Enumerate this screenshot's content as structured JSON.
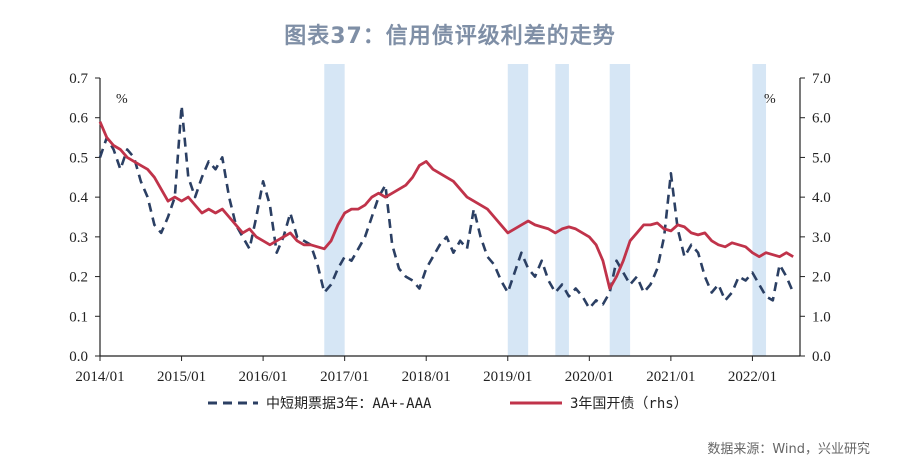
{
  "title": "图表37：信用债评级利差的走势",
  "source": "数据来源：Wind，兴业研究",
  "chart_data": {
    "type": "line",
    "x_range": [
      "2014-01",
      "2022-08"
    ],
    "x_ticks": [
      "2014/01",
      "2015/01",
      "2016/01",
      "2017/01",
      "2018/01",
      "2019/01",
      "2020/01",
      "2021/01",
      "2022/01"
    ],
    "left_axis": {
      "unit": "%",
      "range": [
        0,
        0.7
      ],
      "ticks": [
        "0.0",
        "0.1",
        "0.2",
        "0.3",
        "0.4",
        "0.5",
        "0.6",
        "0.7"
      ]
    },
    "right_axis": {
      "unit": "%",
      "range": [
        0,
        7
      ],
      "ticks": [
        "0.0",
        "1.0",
        "2.0",
        "3.0",
        "4.0",
        "5.0",
        "6.0",
        "7.0"
      ]
    },
    "shaded_periods": [
      {
        "start": "2016-10",
        "end": "2017-01"
      },
      {
        "start": "2019-01",
        "end": "2019-04"
      },
      {
        "start": "2019-08",
        "end": "2019-10"
      },
      {
        "start": "2020-04",
        "end": "2020-07"
      },
      {
        "start": "2022-01",
        "end": "2022-03"
      }
    ],
    "series": [
      {
        "name": "中短期票据3年：AA+-AAA",
        "axis": "left",
        "style": "dashed",
        "color": "#2b3f63",
        "points": [
          [
            "2014-01",
            0.5
          ],
          [
            "2014-02",
            0.55
          ],
          [
            "2014-03",
            0.52
          ],
          [
            "2014-04",
            0.47
          ],
          [
            "2014-05",
            0.52
          ],
          [
            "2014-06",
            0.5
          ],
          [
            "2014-07",
            0.44
          ],
          [
            "2014-08",
            0.4
          ],
          [
            "2014-09",
            0.33
          ],
          [
            "2014-10",
            0.31
          ],
          [
            "2014-11",
            0.35
          ],
          [
            "2014-12",
            0.4
          ],
          [
            "2015-01",
            0.63
          ],
          [
            "2015-02",
            0.45
          ],
          [
            "2015-03",
            0.4
          ],
          [
            "2015-04",
            0.45
          ],
          [
            "2015-05",
            0.49
          ],
          [
            "2015-06",
            0.47
          ],
          [
            "2015-07",
            0.5
          ],
          [
            "2015-08",
            0.4
          ],
          [
            "2015-09",
            0.33
          ],
          [
            "2015-10",
            0.3
          ],
          [
            "2015-11",
            0.27
          ],
          [
            "2015-12",
            0.35
          ],
          [
            "2016-01",
            0.44
          ],
          [
            "2016-02",
            0.38
          ],
          [
            "2016-03",
            0.26
          ],
          [
            "2016-04",
            0.3
          ],
          [
            "2016-05",
            0.36
          ],
          [
            "2016-06",
            0.3
          ],
          [
            "2016-07",
            0.29
          ],
          [
            "2016-08",
            0.28
          ],
          [
            "2016-09",
            0.23
          ],
          [
            "2016-10",
            0.16
          ],
          [
            "2016-11",
            0.18
          ],
          [
            "2016-12",
            0.22
          ],
          [
            "2017-01",
            0.25
          ],
          [
            "2017-02",
            0.24
          ],
          [
            "2017-03",
            0.27
          ],
          [
            "2017-04",
            0.3
          ],
          [
            "2017-05",
            0.35
          ],
          [
            "2017-06",
            0.4
          ],
          [
            "2017-07",
            0.43
          ],
          [
            "2017-08",
            0.28
          ],
          [
            "2017-09",
            0.22
          ],
          [
            "2017-10",
            0.2
          ],
          [
            "2017-11",
            0.19
          ],
          [
            "2017-12",
            0.17
          ],
          [
            "2018-01",
            0.22
          ],
          [
            "2018-02",
            0.25
          ],
          [
            "2018-03",
            0.28
          ],
          [
            "2018-04",
            0.3
          ],
          [
            "2018-05",
            0.26
          ],
          [
            "2018-06",
            0.29
          ],
          [
            "2018-07",
            0.27
          ],
          [
            "2018-08",
            0.37
          ],
          [
            "2018-09",
            0.3
          ],
          [
            "2018-10",
            0.25
          ],
          [
            "2018-11",
            0.23
          ],
          [
            "2018-12",
            0.19
          ],
          [
            "2019-01",
            0.16
          ],
          [
            "2019-02",
            0.21
          ],
          [
            "2019-03",
            0.26
          ],
          [
            "2019-04",
            0.22
          ],
          [
            "2019-05",
            0.2
          ],
          [
            "2019-06",
            0.24
          ],
          [
            "2019-07",
            0.19
          ],
          [
            "2019-08",
            0.16
          ],
          [
            "2019-09",
            0.18
          ],
          [
            "2019-10",
            0.15
          ],
          [
            "2019-11",
            0.17
          ],
          [
            "2019-12",
            0.15
          ],
          [
            "2020-01",
            0.12
          ],
          [
            "2020-02",
            0.14
          ],
          [
            "2020-03",
            0.13
          ],
          [
            "2020-04",
            0.16
          ],
          [
            "2020-05",
            0.24
          ],
          [
            "2020-06",
            0.21
          ],
          [
            "2020-07",
            0.18
          ],
          [
            "2020-08",
            0.2
          ],
          [
            "2020-09",
            0.16
          ],
          [
            "2020-10",
            0.18
          ],
          [
            "2020-11",
            0.22
          ],
          [
            "2020-12",
            0.3
          ],
          [
            "2021-01",
            0.46
          ],
          [
            "2021-02",
            0.32
          ],
          [
            "2021-03",
            0.25
          ],
          [
            "2021-04",
            0.28
          ],
          [
            "2021-05",
            0.26
          ],
          [
            "2021-06",
            0.2
          ],
          [
            "2021-07",
            0.16
          ],
          [
            "2021-08",
            0.18
          ],
          [
            "2021-09",
            0.14
          ],
          [
            "2021-10",
            0.16
          ],
          [
            "2021-11",
            0.2
          ],
          [
            "2021-12",
            0.19
          ],
          [
            "2022-01",
            0.21
          ],
          [
            "2022-02",
            0.18
          ],
          [
            "2022-03",
            0.15
          ],
          [
            "2022-04",
            0.14
          ],
          [
            "2022-05",
            0.23
          ],
          [
            "2022-06",
            0.2
          ],
          [
            "2022-07",
            0.16
          ]
        ]
      },
      {
        "name": "3年国开债（rhs）",
        "axis": "right",
        "style": "solid",
        "color": "#c0334a",
        "points": [
          [
            "2014-01",
            5.9
          ],
          [
            "2014-02",
            5.5
          ],
          [
            "2014-03",
            5.3
          ],
          [
            "2014-04",
            5.2
          ],
          [
            "2014-05",
            5.0
          ],
          [
            "2014-06",
            4.9
          ],
          [
            "2014-07",
            4.8
          ],
          [
            "2014-08",
            4.7
          ],
          [
            "2014-09",
            4.5
          ],
          [
            "2014-10",
            4.2
          ],
          [
            "2014-11",
            3.9
          ],
          [
            "2014-12",
            4.0
          ],
          [
            "2015-01",
            3.9
          ],
          [
            "2015-02",
            4.0
          ],
          [
            "2015-03",
            3.8
          ],
          [
            "2015-04",
            3.6
          ],
          [
            "2015-05",
            3.7
          ],
          [
            "2015-06",
            3.6
          ],
          [
            "2015-07",
            3.7
          ],
          [
            "2015-08",
            3.5
          ],
          [
            "2015-09",
            3.3
          ],
          [
            "2015-10",
            3.1
          ],
          [
            "2015-11",
            3.2
          ],
          [
            "2015-12",
            3.0
          ],
          [
            "2016-01",
            2.9
          ],
          [
            "2016-02",
            2.8
          ],
          [
            "2016-03",
            2.9
          ],
          [
            "2016-04",
            3.0
          ],
          [
            "2016-05",
            3.1
          ],
          [
            "2016-06",
            2.9
          ],
          [
            "2016-07",
            2.8
          ],
          [
            "2016-08",
            2.8
          ],
          [
            "2016-09",
            2.75
          ],
          [
            "2016-10",
            2.7
          ],
          [
            "2016-11",
            2.9
          ],
          [
            "2016-12",
            3.3
          ],
          [
            "2017-01",
            3.6
          ],
          [
            "2017-02",
            3.7
          ],
          [
            "2017-03",
            3.7
          ],
          [
            "2017-04",
            3.8
          ],
          [
            "2017-05",
            4.0
          ],
          [
            "2017-06",
            4.1
          ],
          [
            "2017-07",
            4.0
          ],
          [
            "2017-08",
            4.1
          ],
          [
            "2017-09",
            4.2
          ],
          [
            "2017-10",
            4.3
          ],
          [
            "2017-11",
            4.5
          ],
          [
            "2017-12",
            4.8
          ],
          [
            "2018-01",
            4.9
          ],
          [
            "2018-02",
            4.7
          ],
          [
            "2018-03",
            4.6
          ],
          [
            "2018-04",
            4.5
          ],
          [
            "2018-05",
            4.4
          ],
          [
            "2018-06",
            4.2
          ],
          [
            "2018-07",
            4.0
          ],
          [
            "2018-08",
            3.9
          ],
          [
            "2018-09",
            3.8
          ],
          [
            "2018-10",
            3.7
          ],
          [
            "2018-11",
            3.5
          ],
          [
            "2018-12",
            3.3
          ],
          [
            "2019-01",
            3.1
          ],
          [
            "2019-02",
            3.2
          ],
          [
            "2019-03",
            3.3
          ],
          [
            "2019-04",
            3.4
          ],
          [
            "2019-05",
            3.3
          ],
          [
            "2019-06",
            3.25
          ],
          [
            "2019-07",
            3.2
          ],
          [
            "2019-08",
            3.1
          ],
          [
            "2019-09",
            3.2
          ],
          [
            "2019-10",
            3.25
          ],
          [
            "2019-11",
            3.2
          ],
          [
            "2019-12",
            3.1
          ],
          [
            "2020-01",
            3.0
          ],
          [
            "2020-02",
            2.8
          ],
          [
            "2020-03",
            2.4
          ],
          [
            "2020-04",
            1.7
          ],
          [
            "2020-05",
            2.0
          ],
          [
            "2020-06",
            2.4
          ],
          [
            "2020-07",
            2.9
          ],
          [
            "2020-08",
            3.1
          ],
          [
            "2020-09",
            3.3
          ],
          [
            "2020-10",
            3.3
          ],
          [
            "2020-11",
            3.35
          ],
          [
            "2020-12",
            3.2
          ],
          [
            "2021-01",
            3.15
          ],
          [
            "2021-02",
            3.3
          ],
          [
            "2021-03",
            3.25
          ],
          [
            "2021-04",
            3.1
          ],
          [
            "2021-05",
            3.05
          ],
          [
            "2021-06",
            3.1
          ],
          [
            "2021-07",
            2.9
          ],
          [
            "2021-08",
            2.8
          ],
          [
            "2021-09",
            2.75
          ],
          [
            "2021-10",
            2.85
          ],
          [
            "2021-11",
            2.8
          ],
          [
            "2021-12",
            2.75
          ],
          [
            "2022-01",
            2.6
          ],
          [
            "2022-02",
            2.5
          ],
          [
            "2022-03",
            2.6
          ],
          [
            "2022-04",
            2.55
          ],
          [
            "2022-05",
            2.5
          ],
          [
            "2022-06",
            2.6
          ],
          [
            "2022-07",
            2.5
          ]
        ]
      }
    ]
  }
}
